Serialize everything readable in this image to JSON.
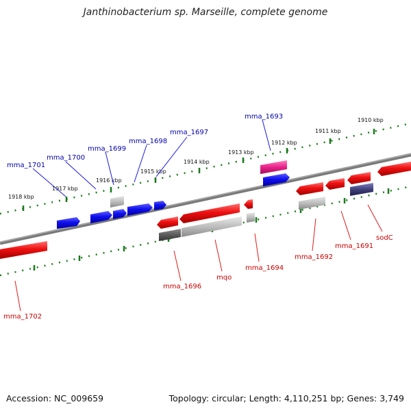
{
  "title": "Janthinobacterium sp. Marseille, complete genome",
  "footer": {
    "accession": "Accession: NC_009659",
    "summary": "Topology: circular; Length: 4,110,251 bp; Genes: 3,749"
  },
  "colors": {
    "forward_gene": "#1010ee",
    "reverse_gene": "#ee1010",
    "label_forward": "#0000aa",
    "label_reverse": "#cc0000",
    "tick_green": "#1a7a1a",
    "backbone": "#7a7a7a",
    "highlight_pink": "#e8208a",
    "dark_purple": "#40407a"
  },
  "ticks": {
    "top": [
      "1918 kbp",
      "1917 kbp",
      "1916 kbp",
      "1915 kbp",
      "1914 kbp",
      "1913 kbp",
      "1912 kbp",
      "1911 kbp",
      "1910 kbp"
    ]
  },
  "labels": {
    "forward": [
      "mma_1701",
      "mma_1700",
      "mma_1699",
      "mma_1698",
      "mma_1697",
      "mma_1693"
    ],
    "reverse": [
      "mma_1702",
      "mma_1696",
      "mqo",
      "mma_1694",
      "mma_1692",
      "mma_1691",
      "sodC"
    ]
  }
}
